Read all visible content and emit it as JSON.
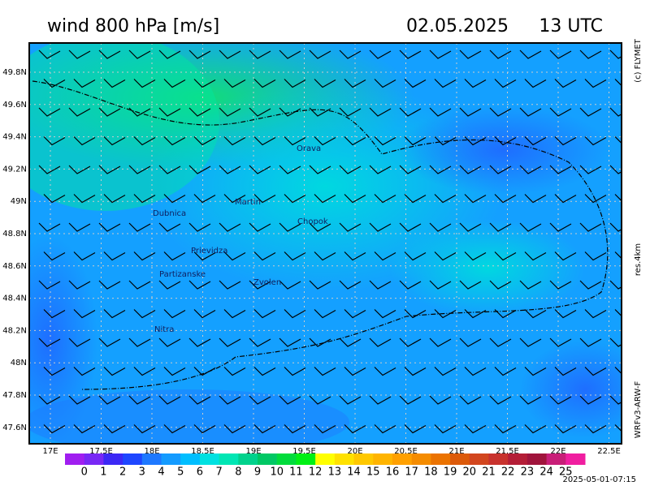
{
  "header": {
    "title": "wind 800 hPa [m/s]",
    "date": "02.05.2025",
    "time": "13 UTC"
  },
  "side": {
    "copyright": "(c) FLYMET",
    "resolution": "res.4km",
    "model": "WRFv3-ARW-F"
  },
  "footer": {
    "run": "2025-05-01-07:15"
  },
  "map": {
    "lat_labels": [
      "49.8N",
      "49.6N",
      "49.4N",
      "49.2N",
      "49N",
      "48.8N",
      "48.6N",
      "48.4N",
      "48.2N",
      "48N",
      "47.8N",
      "47.6N"
    ],
    "lon_labels": [
      "17E",
      "17.5E",
      "18E",
      "18.5E",
      "19E",
      "19.5E",
      "20E",
      "20.5E",
      "21E",
      "21.5E",
      "22E",
      "22.5E"
    ],
    "cities": [
      "Orava",
      "Martin",
      "Dubnica",
      "Chopok",
      "Prievidza",
      "Partizanske",
      "Zvolen",
      "Nitra"
    ]
  },
  "colorbar": {
    "labels": [
      "0",
      "1",
      "2",
      "3",
      "4",
      "5",
      "6",
      "7",
      "8",
      "9",
      "10",
      "11",
      "12",
      "13",
      "14",
      "15",
      "16",
      "17",
      "18",
      "19",
      "20",
      "21",
      "22",
      "23",
      "24",
      "25"
    ],
    "colors": [
      "#a01ef0",
      "#7828f5",
      "#3c28f5",
      "#1e46ff",
      "#1e78ff",
      "#149bff",
      "#00beff",
      "#00e1e1",
      "#00e6b4",
      "#00d28c",
      "#00c864",
      "#00dc3c",
      "#00f014",
      "#ffff00",
      "#ffe100",
      "#ffc800",
      "#ffb400",
      "#ffa000",
      "#f58c00",
      "#eb7300",
      "#dc5a0a",
      "#d2461e",
      "#c8322d",
      "#b41e37",
      "#a0143c",
      "#c81e78",
      "#f01ea0"
    ]
  }
}
